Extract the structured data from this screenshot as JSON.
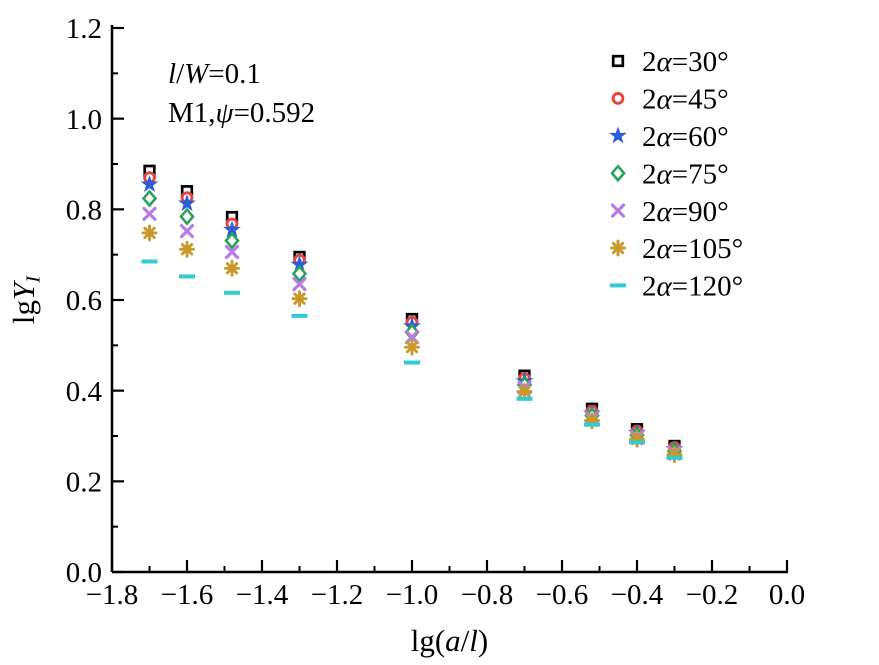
{
  "figure": {
    "annotation_line1": "l/W=0.1",
    "annotation_line2": "M1,ψ=0.592"
  },
  "chart_data": {
    "type": "scatter",
    "title": "",
    "xlabel": "lg(a/l)",
    "ylabel": "lgY_I",
    "xlim": [
      -1.8,
      0.0
    ],
    "ylim": [
      0.0,
      1.2
    ],
    "x_major_step": 0.2,
    "y_major_step": 0.2,
    "x_minor_step": 0.1,
    "y_minor_step": 0.1,
    "grid": false,
    "legend_position": "top-right-inside",
    "x_tick_labels": [
      "−1.8",
      "−1.6",
      "−1.4",
      "−1.2",
      "−1.0",
      "−0.8",
      "−0.6",
      "−0.4",
      "−0.2",
      "0.0"
    ],
    "y_tick_labels": [
      "0.0",
      "0.2",
      "0.4",
      "0.6",
      "0.8",
      "1.0",
      "1.2"
    ],
    "annotations": [
      "l/W=0.1",
      "M1,ψ=0.592"
    ],
    "x": [
      -1.7,
      -1.6,
      -1.48,
      -1.3,
      -1.0,
      -0.7,
      -0.52,
      -0.4,
      -0.3
    ],
    "series": [
      {
        "name": "2α=30°",
        "marker": "open-square",
        "color": "#000000",
        "values": [
          0.885,
          0.84,
          0.783,
          0.695,
          0.558,
          0.433,
          0.36,
          0.315,
          0.278
        ]
      },
      {
        "name": "2α=45°",
        "marker": "open-circle",
        "color": "#e7443e",
        "values": [
          0.87,
          0.826,
          0.768,
          0.688,
          0.551,
          0.427,
          0.355,
          0.311,
          0.275
        ]
      },
      {
        "name": "2α=60°",
        "marker": "filled-star",
        "color": "#2b5cd9",
        "values": [
          0.855,
          0.813,
          0.755,
          0.678,
          0.542,
          0.421,
          0.35,
          0.307,
          0.271
        ]
      },
      {
        "name": "2α=75°",
        "marker": "open-diamond",
        "color": "#2aa35a",
        "values": [
          0.824,
          0.784,
          0.731,
          0.658,
          0.529,
          0.413,
          0.345,
          0.302,
          0.267
        ]
      },
      {
        "name": "2α=90°",
        "marker": "x-cross",
        "color": "#b77ce4",
        "values": [
          0.79,
          0.752,
          0.706,
          0.635,
          0.518,
          0.407,
          0.34,
          0.298,
          0.263
        ]
      },
      {
        "name": "2α=105°",
        "marker": "asterisk",
        "color": "#c9992a",
        "values": [
          0.748,
          0.712,
          0.67,
          0.603,
          0.496,
          0.398,
          0.334,
          0.293,
          0.259
        ]
      },
      {
        "name": "2α=120°",
        "marker": "dash",
        "color": "#30cbd4",
        "values": [
          0.685,
          0.652,
          0.616,
          0.565,
          0.462,
          0.382,
          0.325,
          0.286,
          0.252
        ]
      }
    ],
    "text_runs": {
      "xlabel": [
        {
          "t": "lg("
        },
        {
          "t": "a",
          "i": 1
        },
        {
          "t": "/"
        },
        {
          "t": "l",
          "i": 1
        },
        {
          "t": ")"
        }
      ],
      "ylabel": [
        {
          "t": "lg"
        },
        {
          "t": "Y",
          "i": 1
        },
        {
          "t": "I",
          "i": 1,
          "sub": 1
        }
      ],
      "annotations": [
        [
          {
            "t": "l",
            "i": 1
          },
          {
            "t": "/"
          },
          {
            "t": "W",
            "i": 1
          },
          {
            "t": "=0.1"
          }
        ],
        [
          {
            "t": "M1,"
          },
          {
            "t": "ψ",
            "i": 1
          },
          {
            "t": "=0.592"
          }
        ]
      ],
      "legend": [
        [
          {
            "t": "2"
          },
          {
            "t": "α",
            "i": 1
          },
          {
            "t": "=30°"
          }
        ],
        [
          {
            "t": "2"
          },
          {
            "t": "α",
            "i": 1
          },
          {
            "t": "=45°"
          }
        ],
        [
          {
            "t": "2"
          },
          {
            "t": "α",
            "i": 1
          },
          {
            "t": "=60°"
          }
        ],
        [
          {
            "t": "2"
          },
          {
            "t": "α",
            "i": 1
          },
          {
            "t": "=75°"
          }
        ],
        [
          {
            "t": "2"
          },
          {
            "t": "α",
            "i": 1
          },
          {
            "t": "=90°"
          }
        ],
        [
          {
            "t": "2"
          },
          {
            "t": "α",
            "i": 1
          },
          {
            "t": "=105°"
          }
        ],
        [
          {
            "t": "2"
          },
          {
            "t": "α",
            "i": 1
          },
          {
            "t": "=120°"
          }
        ]
      ]
    }
  }
}
